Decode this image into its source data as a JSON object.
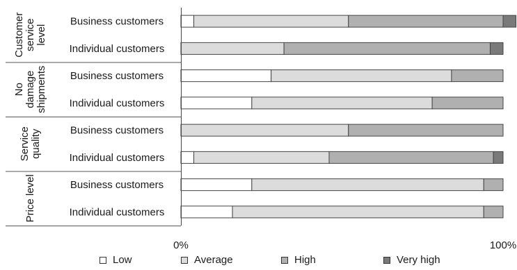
{
  "chart_data": {
    "type": "bar",
    "orientation": "horizontal",
    "stacked": "percent",
    "xlim": [
      0,
      100
    ],
    "x_tick_labels": [
      "0%",
      "100%"
    ],
    "grid": false,
    "legend_position": "bottom",
    "series": [
      {
        "name": "Low",
        "color": "#ffffff"
      },
      {
        "name": "Average",
        "color": "#dcdcdc"
      },
      {
        "name": "High",
        "color": "#b0b0b0"
      },
      {
        "name": "Very high",
        "color": "#7a7a7a"
      }
    ],
    "groups": [
      {
        "label": "Customer service level",
        "label_lines": [
          "Customer",
          "service",
          "level"
        ],
        "rows": [
          {
            "category": "Business customers",
            "values": [
              4,
              48,
              48,
              4
            ]
          },
          {
            "category": "Individual customers",
            "values": [
              0,
              32,
              64,
              4
            ]
          }
        ]
      },
      {
        "label": "No damage shipments",
        "label_lines": [
          "No",
          "damage",
          "shipments"
        ],
        "rows": [
          {
            "category": "Business customers",
            "values": [
              28,
              56,
              16,
              0
            ]
          },
          {
            "category": "Individual customers",
            "values": [
              22,
              56,
              22,
              0
            ]
          }
        ]
      },
      {
        "label": "Service quality",
        "label_lines": [
          "Service",
          "quality"
        ],
        "rows": [
          {
            "category": "Business customers",
            "values": [
              0,
              52,
              48,
              0
            ]
          },
          {
            "category": "Individual customers",
            "values": [
              4,
              42,
              51,
              3
            ]
          }
        ]
      },
      {
        "label": "Price level",
        "label_lines": [
          "Price level"
        ],
        "rows": [
          {
            "category": "Business customers",
            "values": [
              22,
              72,
              6,
              0
            ]
          },
          {
            "category": "Individual customers",
            "values": [
              16,
              78,
              6,
              0
            ]
          }
        ]
      }
    ]
  }
}
